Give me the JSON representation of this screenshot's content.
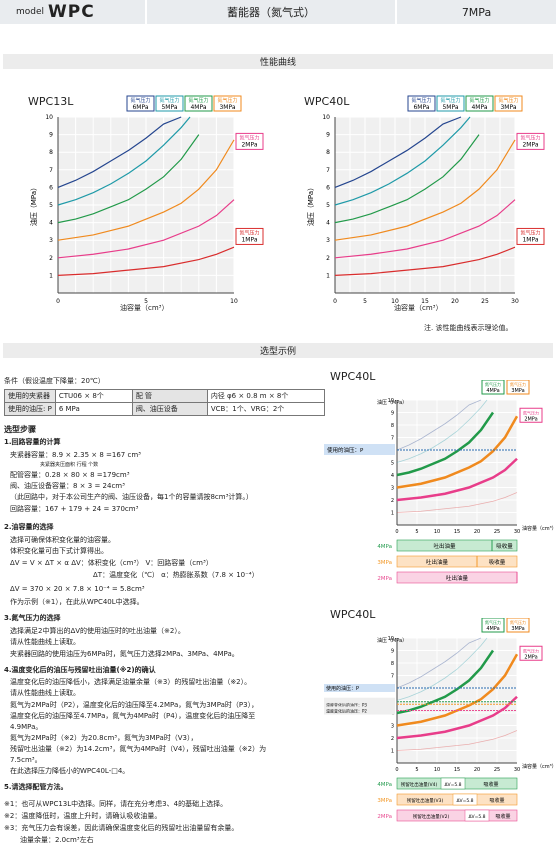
{
  "header": {
    "model_small": "model",
    "model_big": "WPC",
    "category": "蓄能器（氮气式）",
    "pressure": "7MPa"
  },
  "section1": "性能曲线",
  "section2": "选型示例",
  "chart1": {
    "title": "WPC13L",
    "xlabel": "油容量（cm³）",
    "ylabel": "油压（MPa）",
    "xticks": [
      "0",
      "5",
      "10"
    ],
    "yticks": [
      "1",
      "2",
      "3",
      "4",
      "5",
      "6",
      "7",
      "8",
      "9",
      "10"
    ]
  },
  "chart2": {
    "title": "WPC40L",
    "xlabel": "油容量（cm³）",
    "ylabel": "油压（MPa）",
    "xticks": [
      "0",
      "5",
      "10",
      "15",
      "20",
      "25",
      "30"
    ],
    "yticks": [
      "1",
      "2",
      "3",
      "4",
      "5",
      "6",
      "7",
      "8",
      "9",
      "10"
    ]
  },
  "legend": {
    "head": "氮气压力",
    "p6": "6MPa",
    "p5": "5MPa",
    "p4": "4MPa",
    "p3": "3MPa",
    "p2": "2MPa",
    "p1": "1MPa"
  },
  "note_chart": "注. 该性能曲线表示理论值。",
  "chart_data": [
    {
      "type": "line",
      "title": "WPC13L",
      "xlabel": "油容量（cm³）",
      "ylabel": "油压（MPa）",
      "xlim": [
        0,
        10
      ],
      "ylim": [
        0,
        10
      ],
      "series": [
        {
          "name": "6MPa",
          "x": [
            0,
            1,
            2,
            3,
            4,
            5,
            6,
            7
          ],
          "y": [
            6,
            6.4,
            6.9,
            7.5,
            8.1,
            8.8,
            9.6,
            10
          ]
        },
        {
          "name": "5MPa",
          "x": [
            0,
            1,
            2,
            3,
            4,
            5,
            6,
            7,
            7.5
          ],
          "y": [
            5,
            5.3,
            5.7,
            6.2,
            6.8,
            7.5,
            8.4,
            9.4,
            10
          ]
        },
        {
          "name": "4MPa",
          "x": [
            0,
            1,
            2,
            3,
            4,
            5,
            6,
            7,
            8
          ],
          "y": [
            4,
            4.2,
            4.5,
            4.9,
            5.3,
            5.9,
            6.6,
            7.6,
            9
          ]
        },
        {
          "name": "3MPa",
          "x": [
            0,
            2,
            4,
            6,
            7,
            8,
            9,
            10
          ],
          "y": [
            3,
            3.3,
            3.8,
            4.6,
            5.1,
            5.9,
            7,
            8.7
          ]
        },
        {
          "name": "2MPa",
          "x": [
            0,
            2,
            4,
            6,
            8,
            9,
            10
          ],
          "y": [
            2,
            2.2,
            2.5,
            3,
            3.8,
            4.4,
            5.3
          ]
        },
        {
          "name": "1MPa",
          "x": [
            0,
            2,
            4,
            6,
            8,
            9,
            10
          ],
          "y": [
            1,
            1.1,
            1.3,
            1.5,
            1.9,
            2.2,
            2.6
          ]
        }
      ]
    },
    {
      "type": "line",
      "title": "WPC40L",
      "xlabel": "油容量（cm³）",
      "ylabel": "油压（MPa）",
      "xlim": [
        0,
        30
      ],
      "ylim": [
        0,
        10
      ],
      "series": [
        {
          "name": "6MPa",
          "x": [
            0,
            3,
            6,
            9,
            12,
            15,
            18,
            21
          ],
          "y": [
            6,
            6.4,
            6.9,
            7.5,
            8.1,
            8.8,
            9.6,
            10
          ]
        },
        {
          "name": "5MPa",
          "x": [
            0,
            3,
            6,
            9,
            12,
            15,
            18,
            21,
            22.5
          ],
          "y": [
            5,
            5.3,
            5.7,
            6.2,
            6.8,
            7.5,
            8.4,
            9.4,
            10
          ]
        },
        {
          "name": "4MPa",
          "x": [
            0,
            3,
            6,
            9,
            12,
            15,
            18,
            21,
            24
          ],
          "y": [
            4,
            4.2,
            4.5,
            4.9,
            5.3,
            5.9,
            6.6,
            7.6,
            9
          ]
        },
        {
          "name": "3MPa",
          "x": [
            0,
            6,
            12,
            18,
            21,
            24,
            27,
            30
          ],
          "y": [
            3,
            3.3,
            3.8,
            4.6,
            5.1,
            5.9,
            7,
            8.7
          ]
        },
        {
          "name": "2MPa",
          "x": [
            0,
            6,
            12,
            18,
            24,
            27,
            30
          ],
          "y": [
            2,
            2.2,
            2.5,
            3,
            3.8,
            4.4,
            5.3
          ]
        },
        {
          "name": "1MPa",
          "x": [
            0,
            6,
            12,
            18,
            24,
            27,
            30
          ],
          "y": [
            1,
            1.1,
            1.3,
            1.5,
            1.9,
            2.2,
            2.6
          ]
        }
      ]
    }
  ],
  "conditions": {
    "title": "条件（假设温度下降量：20℃）",
    "r1": [
      "使用的夹紧器",
      "CTU06 × 8个",
      "配 管",
      "内径 φ6 × 0.8 m × 8个"
    ],
    "r2": [
      "使用的油压: P",
      "6 MPa",
      "阀、油压设备",
      "VCB：1个、VRG：2个"
    ]
  },
  "steps": {
    "title": "选型步骤",
    "s1": "1.回路容量的计算",
    "s1a": "夹紧器容量：8.9 × 2.35 × 8 =167 cm³",
    "s1b": "夹紧器夹压面积   行程    个数",
    "s1c": "配管容量：0.28 × 80 × 8 =179cm³",
    "s1d": "阀、油压设备容量：8 × 3 = 24cm³",
    "s1e": "（此回路中，对于本公司生产的阀、油压设备，每1个的容量请按8cm³计算。）",
    "s1f": "回路容量：167 + 179 + 24 = 370cm³",
    "s2": "2.油容量的选择",
    "s2a": "选择可确保体积变化量的油容量。",
    "s2b": "体积变化量可由下式计算得出。",
    "s2c": "ΔV = V × ΔT × α     ΔV：体积变化（cm³）       V：回路容量（cm³）",
    "s2d": "ΔT：温度变化（℃）      α：热膨胀系数（7.8 × 10⁻⁴）",
    "s2e": "ΔV = 370 × 20 × 7.8 × 10⁻⁴ = 5.8cm³",
    "s2f": "作为示例（※1），在此从WPC40L中选择。",
    "s3": "3.氮气压力的选择",
    "s3a": "选择满足2中算出的ΔV的使用油压时的吐出油量（※2）。",
    "s3b": "请从性能曲线上读取。",
    "s3c": "夹紧器回路的使用油压为6MPa时，氮气压力选择2MPa、3MPa、4MPa。",
    "s4": "4.温度变化后的油压与残留吐出油量(※2)的确认",
    "s4a": "温度变化后的油压降低小，选择满足油量余量（※3）的残留吐出油量（※2）。",
    "s4b": "请从性能曲线上读取。",
    "s4c": "氮气为2MPa时（P2），温度变化后的油压降至4.2MPa，氮气为3MPa时（P3），",
    "s4d": "温度变化后的油压降至4.7MPa，氮气为4MPa时（P4），温度变化后的油压降至",
    "s4e": "4.9MPa。",
    "s4f": "氮气为2MPa时（※2）为20.8cm³，氮气为3MPa时（V3），",
    "s4g": "残留吐出油量（※2）为14.2cm³，氮气为4MPa时（V4），残留吐出油量（※2）为",
    "s4h": "7.5cm³。",
    "s4i": "在此选择压力降低小的WPC40L-□4。",
    "s5": "5.请选择配管方法。",
    "n1": "※1：也可从WPC13L中选择。同样，请在充分考虑3、4的基础上选择。",
    "n2": "※2：温度降低时，温度上升时，请确认吸收油量。",
    "n3": "※3：充气压力会有误差，因此请确保温度变化后的残留吐出油量留有余量。",
    "n4": "油量余量：2.0cm³左右"
  },
  "ex1": {
    "title": "WPC40L",
    "ylabel": "油压（MPa）",
    "xlabel": "油容量（cm³）",
    "use_p": "使用的油压：P",
    "bar4": [
      "4MPa",
      "吐出油量",
      "吸收量"
    ],
    "bar3": [
      "3MPa",
      "吐出油量",
      "吸收量"
    ],
    "bar2": [
      "2MPa",
      "吐出油量"
    ]
  },
  "ex2": {
    "title": "WPC40L",
    "ylabel": "油压（MPa）",
    "xlabel": "油容量（cm³）",
    "lines": [
      "使用的油压：P",
      "温度变化后的油压：P4",
      "温度变化后的油压：P3",
      "温度变化后的油压：P2"
    ],
    "bar4": [
      "4MPa",
      "残留吐出油量(V4)",
      "ΔV=5.8",
      "吸收量"
    ],
    "bar3": [
      "3MPa",
      "残留吐出油量(V3)",
      "ΔV=5.8",
      "吸收量"
    ],
    "bar2": [
      "2MPa",
      "残留吐出油量(V2)",
      "ΔV=5.8",
      "吸收量"
    ]
  }
}
